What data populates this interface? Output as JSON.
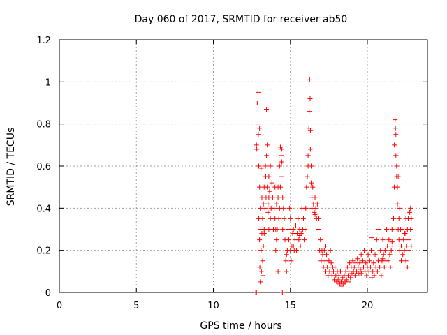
{
  "chart_data": {
    "type": "scatter",
    "title": "Day 060 of 2017, SRMTID for receiver ab50",
    "xlabel": "GPS time / hours",
    "ylabel": "SRMTID / TECUs",
    "xlim": [
      0,
      23.9
    ],
    "ylim": [
      0,
      1.2
    ],
    "xticks": [
      0,
      5,
      10,
      15,
      20
    ],
    "yticks": [
      0,
      0.2,
      0.4,
      0.6,
      0.8,
      1,
      1.2
    ],
    "ytick_labels": [
      "0",
      "0.2",
      "0.4",
      "0.6",
      "0.8",
      "1",
      "1.2"
    ],
    "grid": true,
    "marker": "+",
    "color": "#ff0000",
    "series": [
      {
        "name": "SRMTID",
        "points": [
          [
            12.75,
            0.0
          ],
          [
            12.8,
            0.0
          ],
          [
            12.8,
            0.7
          ],
          [
            12.82,
            0.68
          ],
          [
            12.85,
            0.9
          ],
          [
            12.9,
            0.95
          ],
          [
            12.9,
            0.8
          ],
          [
            12.92,
            0.75
          ],
          [
            12.95,
            0.6
          ],
          [
            12.95,
            0.35
          ],
          [
            13.0,
            0.5
          ],
          [
            13.0,
            0.25
          ],
          [
            13.02,
            0.12
          ],
          [
            13.05,
            0.4
          ],
          [
            13.05,
            0.05
          ],
          [
            13.08,
            0.3
          ],
          [
            13.1,
            0.59
          ],
          [
            13.1,
            0.2
          ],
          [
            13.12,
            0.1
          ],
          [
            13.15,
            0.45
          ],
          [
            13.15,
            0.28
          ],
          [
            13.2,
            0.35
          ],
          [
            13.2,
            0.15
          ],
          [
            13.22,
            0.08
          ],
          [
            13.25,
            0.42
          ],
          [
            13.25,
            0.22
          ],
          [
            13.3,
            0.3
          ],
          [
            13.3,
            0.5
          ],
          [
            13.35,
            0.4
          ],
          [
            13.38,
            0.6
          ],
          [
            13.4,
            0.55
          ],
          [
            13.42,
            0.45
          ],
          [
            13.45,
            0.87
          ],
          [
            13.45,
            0.65
          ],
          [
            13.5,
            0.5
          ],
          [
            13.5,
            0.7
          ],
          [
            13.55,
            0.42
          ],
          [
            13.55,
            0.38
          ],
          [
            13.6,
            0.55
          ],
          [
            13.6,
            0.3
          ],
          [
            13.65,
            0.48
          ],
          [
            13.7,
            0.6
          ],
          [
            13.7,
            0.35
          ],
          [
            13.75,
            0.4
          ],
          [
            13.8,
            0.52
          ],
          [
            13.85,
            0.45
          ],
          [
            13.9,
            0.3
          ],
          [
            13.95,
            0.4
          ],
          [
            14.0,
            0.35
          ],
          [
            14.0,
            0.5
          ],
          [
            14.05,
            0.3
          ],
          [
            14.05,
            0.2
          ],
          [
            14.1,
            0.42
          ],
          [
            14.1,
            0.25
          ],
          [
            14.15,
            0.3
          ],
          [
            14.2,
            0.1
          ],
          [
            14.2,
            0.45
          ],
          [
            14.25,
            0.35
          ],
          [
            14.3,
            0.4
          ],
          [
            14.3,
            0.6
          ],
          [
            14.35,
            0.5
          ],
          [
            14.35,
            0.69
          ],
          [
            14.4,
            0.65
          ],
          [
            14.4,
            0.55
          ],
          [
            14.45,
            0.62
          ],
          [
            14.45,
            0.68
          ],
          [
            14.48,
            0.0
          ],
          [
            14.5,
            0.45
          ],
          [
            14.5,
            0.3
          ],
          [
            14.55,
            0.4
          ],
          [
            14.6,
            0.35
          ],
          [
            14.65,
            0.25
          ],
          [
            14.7,
            0.15
          ],
          [
            14.75,
            0.18
          ],
          [
            14.75,
            0.1
          ],
          [
            14.8,
            0.2
          ],
          [
            14.85,
            0.3
          ],
          [
            14.9,
            0.25
          ],
          [
            14.95,
            0.4
          ],
          [
            15.0,
            0.35
          ],
          [
            15.0,
            0.2
          ],
          [
            15.05,
            0.15
          ],
          [
            15.1,
            0.22
          ],
          [
            15.15,
            0.28
          ],
          [
            15.2,
            0.3
          ],
          [
            15.25,
            0.2
          ],
          [
            15.3,
            0.25
          ],
          [
            15.35,
            0.32
          ],
          [
            15.4,
            0.2
          ],
          [
            15.45,
            0.28
          ],
          [
            15.5,
            0.35
          ],
          [
            15.55,
            0.25
          ],
          [
            15.6,
            0.3
          ],
          [
            15.65,
            0.22
          ],
          [
            15.7,
            0.28
          ],
          [
            15.75,
            0.4
          ],
          [
            15.8,
            0.3
          ],
          [
            15.85,
            0.35
          ],
          [
            15.9,
            0.25
          ],
          [
            15.95,
            0.3
          ],
          [
            16.0,
            0.4
          ],
          [
            16.05,
            0.5
          ],
          [
            16.1,
            0.55
          ],
          [
            16.15,
            0.65
          ],
          [
            16.15,
            0.6
          ],
          [
            16.2,
            0.78
          ],
          [
            16.22,
            0.86
          ],
          [
            16.25,
            1.01
          ],
          [
            16.28,
            0.92
          ],
          [
            16.3,
            0.77
          ],
          [
            16.3,
            0.68
          ],
          [
            16.35,
            0.6
          ],
          [
            16.35,
            0.52
          ],
          [
            16.4,
            0.45
          ],
          [
            16.4,
            0.4
          ],
          [
            16.45,
            0.5
          ],
          [
            16.5,
            0.42
          ],
          [
            16.55,
            0.38
          ],
          [
            16.6,
            0.45
          ],
          [
            16.65,
            0.4
          ],
          [
            16.7,
            0.35
          ],
          [
            16.75,
            0.42
          ],
          [
            16.8,
            0.3
          ],
          [
            16.85,
            0.35
          ],
          [
            16.9,
            0.2
          ],
          [
            16.95,
            0.25
          ],
          [
            17.0,
            0.15
          ],
          [
            17.05,
            0.2
          ],
          [
            17.1,
            0.18
          ],
          [
            17.15,
            0.12
          ],
          [
            17.2,
            0.2
          ],
          [
            17.25,
            0.15
          ],
          [
            17.3,
            0.1
          ],
          [
            17.35,
            0.18
          ],
          [
            17.4,
            0.12
          ],
          [
            17.45,
            0.08
          ],
          [
            17.5,
            0.15
          ],
          [
            17.55,
            0.1
          ],
          [
            17.6,
            0.2
          ],
          [
            17.65,
            0.14
          ],
          [
            17.7,
            0.08
          ],
          [
            17.75,
            0.12
          ],
          [
            17.8,
            0.1
          ],
          [
            17.85,
            0.06
          ],
          [
            17.9,
            0.12
          ],
          [
            17.95,
            0.08
          ],
          [
            18.0,
            0.05
          ],
          [
            18.05,
            0.1
          ],
          [
            18.1,
            0.06
          ],
          [
            18.15,
            0.08
          ],
          [
            18.2,
            0.04
          ],
          [
            18.25,
            0.1
          ],
          [
            18.3,
            0.05
          ],
          [
            18.35,
            0.03
          ],
          [
            18.4,
            0.07
          ],
          [
            18.45,
            0.04
          ],
          [
            18.5,
            0.08
          ],
          [
            18.55,
            0.05
          ],
          [
            18.6,
            0.1
          ],
          [
            18.65,
            0.06
          ],
          [
            18.7,
            0.12
          ],
          [
            18.75,
            0.08
          ],
          [
            18.8,
            0.1
          ],
          [
            18.85,
            0.14
          ],
          [
            18.9,
            0.07
          ],
          [
            18.95,
            0.12
          ],
          [
            19.0,
            0.09
          ],
          [
            19.05,
            0.15
          ],
          [
            19.1,
            0.1
          ],
          [
            19.15,
            0.12
          ],
          [
            19.2,
            0.08
          ],
          [
            19.25,
            0.14
          ],
          [
            19.3,
            0.1
          ],
          [
            19.35,
            0.16
          ],
          [
            19.4,
            0.12
          ],
          [
            19.45,
            0.09
          ],
          [
            19.5,
            0.14
          ],
          [
            19.55,
            0.11
          ],
          [
            19.6,
            0.18
          ],
          [
            19.65,
            0.1
          ],
          [
            19.7,
            0.15
          ],
          [
            19.75,
            0.12
          ],
          [
            19.8,
            0.2
          ],
          [
            19.85,
            0.1
          ],
          [
            19.9,
            0.14
          ],
          [
            19.95,
            0.08
          ],
          [
            20.0,
            0.12
          ],
          [
            20.05,
            0.18
          ],
          [
            20.1,
            0.1
          ],
          [
            20.15,
            0.15
          ],
          [
            20.2,
            0.12
          ],
          [
            20.25,
            0.2
          ],
          [
            20.3,
            0.26
          ],
          [
            20.35,
            0.1
          ],
          [
            20.4,
            0.14
          ],
          [
            20.45,
            0.08
          ],
          [
            20.5,
            0.18
          ],
          [
            20.55,
            0.12
          ],
          [
            20.6,
            0.25
          ],
          [
            20.65,
            0.1
          ],
          [
            20.7,
            0.15
          ],
          [
            20.75,
            0.3
          ],
          [
            20.8,
            0.12
          ],
          [
            20.85,
            0.2
          ],
          [
            20.9,
            0.08
          ],
          [
            20.95,
            0.15
          ],
          [
            21.0,
            0.25
          ],
          [
            21.05,
            0.18
          ],
          [
            21.1,
            0.12
          ],
          [
            21.15,
            0.2
          ],
          [
            21.2,
            0.15
          ],
          [
            21.25,
            0.3
          ],
          [
            21.3,
            0.22
          ],
          [
            21.35,
            0.15
          ],
          [
            21.4,
            0.25
          ],
          [
            21.45,
            0.18
          ],
          [
            21.5,
            0.12
          ],
          [
            21.55,
            0.2
          ],
          [
            21.6,
            0.3
          ],
          [
            21.65,
            0.22
          ],
          [
            21.7,
            0.35
          ],
          [
            21.75,
            0.5
          ],
          [
            21.75,
            0.7
          ],
          [
            21.8,
            0.82
          ],
          [
            21.82,
            0.78
          ],
          [
            21.85,
            0.65
          ],
          [
            21.85,
            0.75
          ],
          [
            21.9,
            0.6
          ],
          [
            21.9,
            0.55
          ],
          [
            21.95,
            0.5
          ],
          [
            21.95,
            0.42
          ],
          [
            22.0,
            0.55
          ],
          [
            22.0,
            0.3
          ],
          [
            22.05,
            0.35
          ],
          [
            22.05,
            0.25
          ],
          [
            22.1,
            0.4
          ],
          [
            22.1,
            0.2
          ],
          [
            22.15,
            0.3
          ],
          [
            22.2,
            0.22
          ],
          [
            22.2,
            0.15
          ],
          [
            22.25,
            0.3
          ],
          [
            22.3,
            0.18
          ],
          [
            22.35,
            0.25
          ],
          [
            22.4,
            0.2
          ],
          [
            22.45,
            0.28
          ],
          [
            22.5,
            0.15
          ],
          [
            22.5,
            0.35
          ],
          [
            22.55,
            0.22
          ],
          [
            22.6,
            0.3
          ],
          [
            22.6,
            0.12
          ],
          [
            22.65,
            0.35
          ],
          [
            22.7,
            0.25
          ],
          [
            22.7,
            0.2
          ],
          [
            22.75,
            0.38
          ],
          [
            22.8,
            0.3
          ],
          [
            22.8,
            0.4
          ],
          [
            22.85,
            0.22
          ],
          [
            22.85,
            0.35
          ],
          [
            13.0,
            0.78
          ],
          [
            13.3,
            0.28
          ],
          [
            13.6,
            0.45
          ],
          [
            14.2,
            0.5
          ],
          [
            15.2,
            0.22
          ],
          [
            15.6,
            0.27
          ],
          [
            16.6,
            0.37
          ],
          [
            17.3,
            0.22
          ],
          [
            18.8,
            0.05
          ],
          [
            19.6,
            0.09
          ],
          [
            20.3,
            0.07
          ],
          [
            21.0,
            0.16
          ],
          [
            21.6,
            0.24
          ],
          [
            22.4,
            0.28
          ]
        ]
      }
    ]
  }
}
